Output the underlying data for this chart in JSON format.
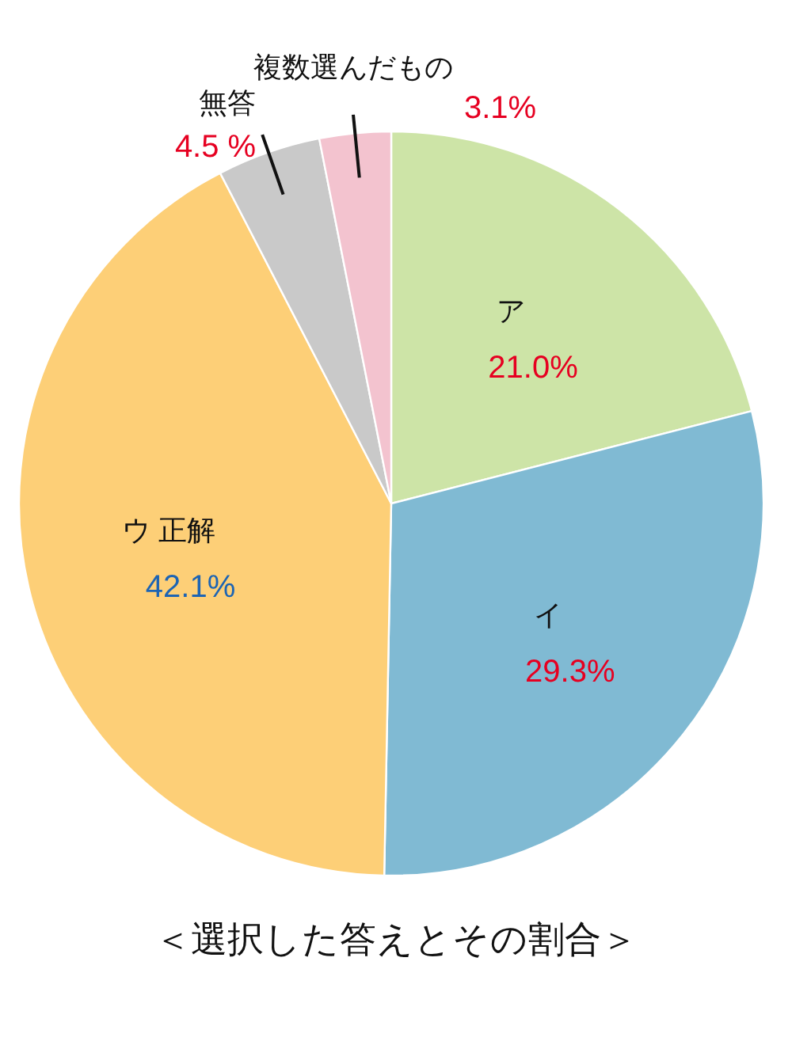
{
  "chart_data": {
    "type": "pie",
    "title": "＜選択した答えとその割合＞",
    "categories": [
      "ア",
      "イ",
      "ウ 正解",
      "無答",
      "複数選んだもの"
    ],
    "values": [
      21.0,
      29.3,
      42.1,
      4.5,
      3.1
    ],
    "colors": [
      "#cde4a7",
      "#80bad3",
      "#fdcf77",
      "#c9c9c9",
      "#f3c3cf"
    ],
    "value_labels": [
      "21.0%",
      "29.3%",
      "42.1%",
      "4.5 %",
      "3.1%"
    ]
  }
}
